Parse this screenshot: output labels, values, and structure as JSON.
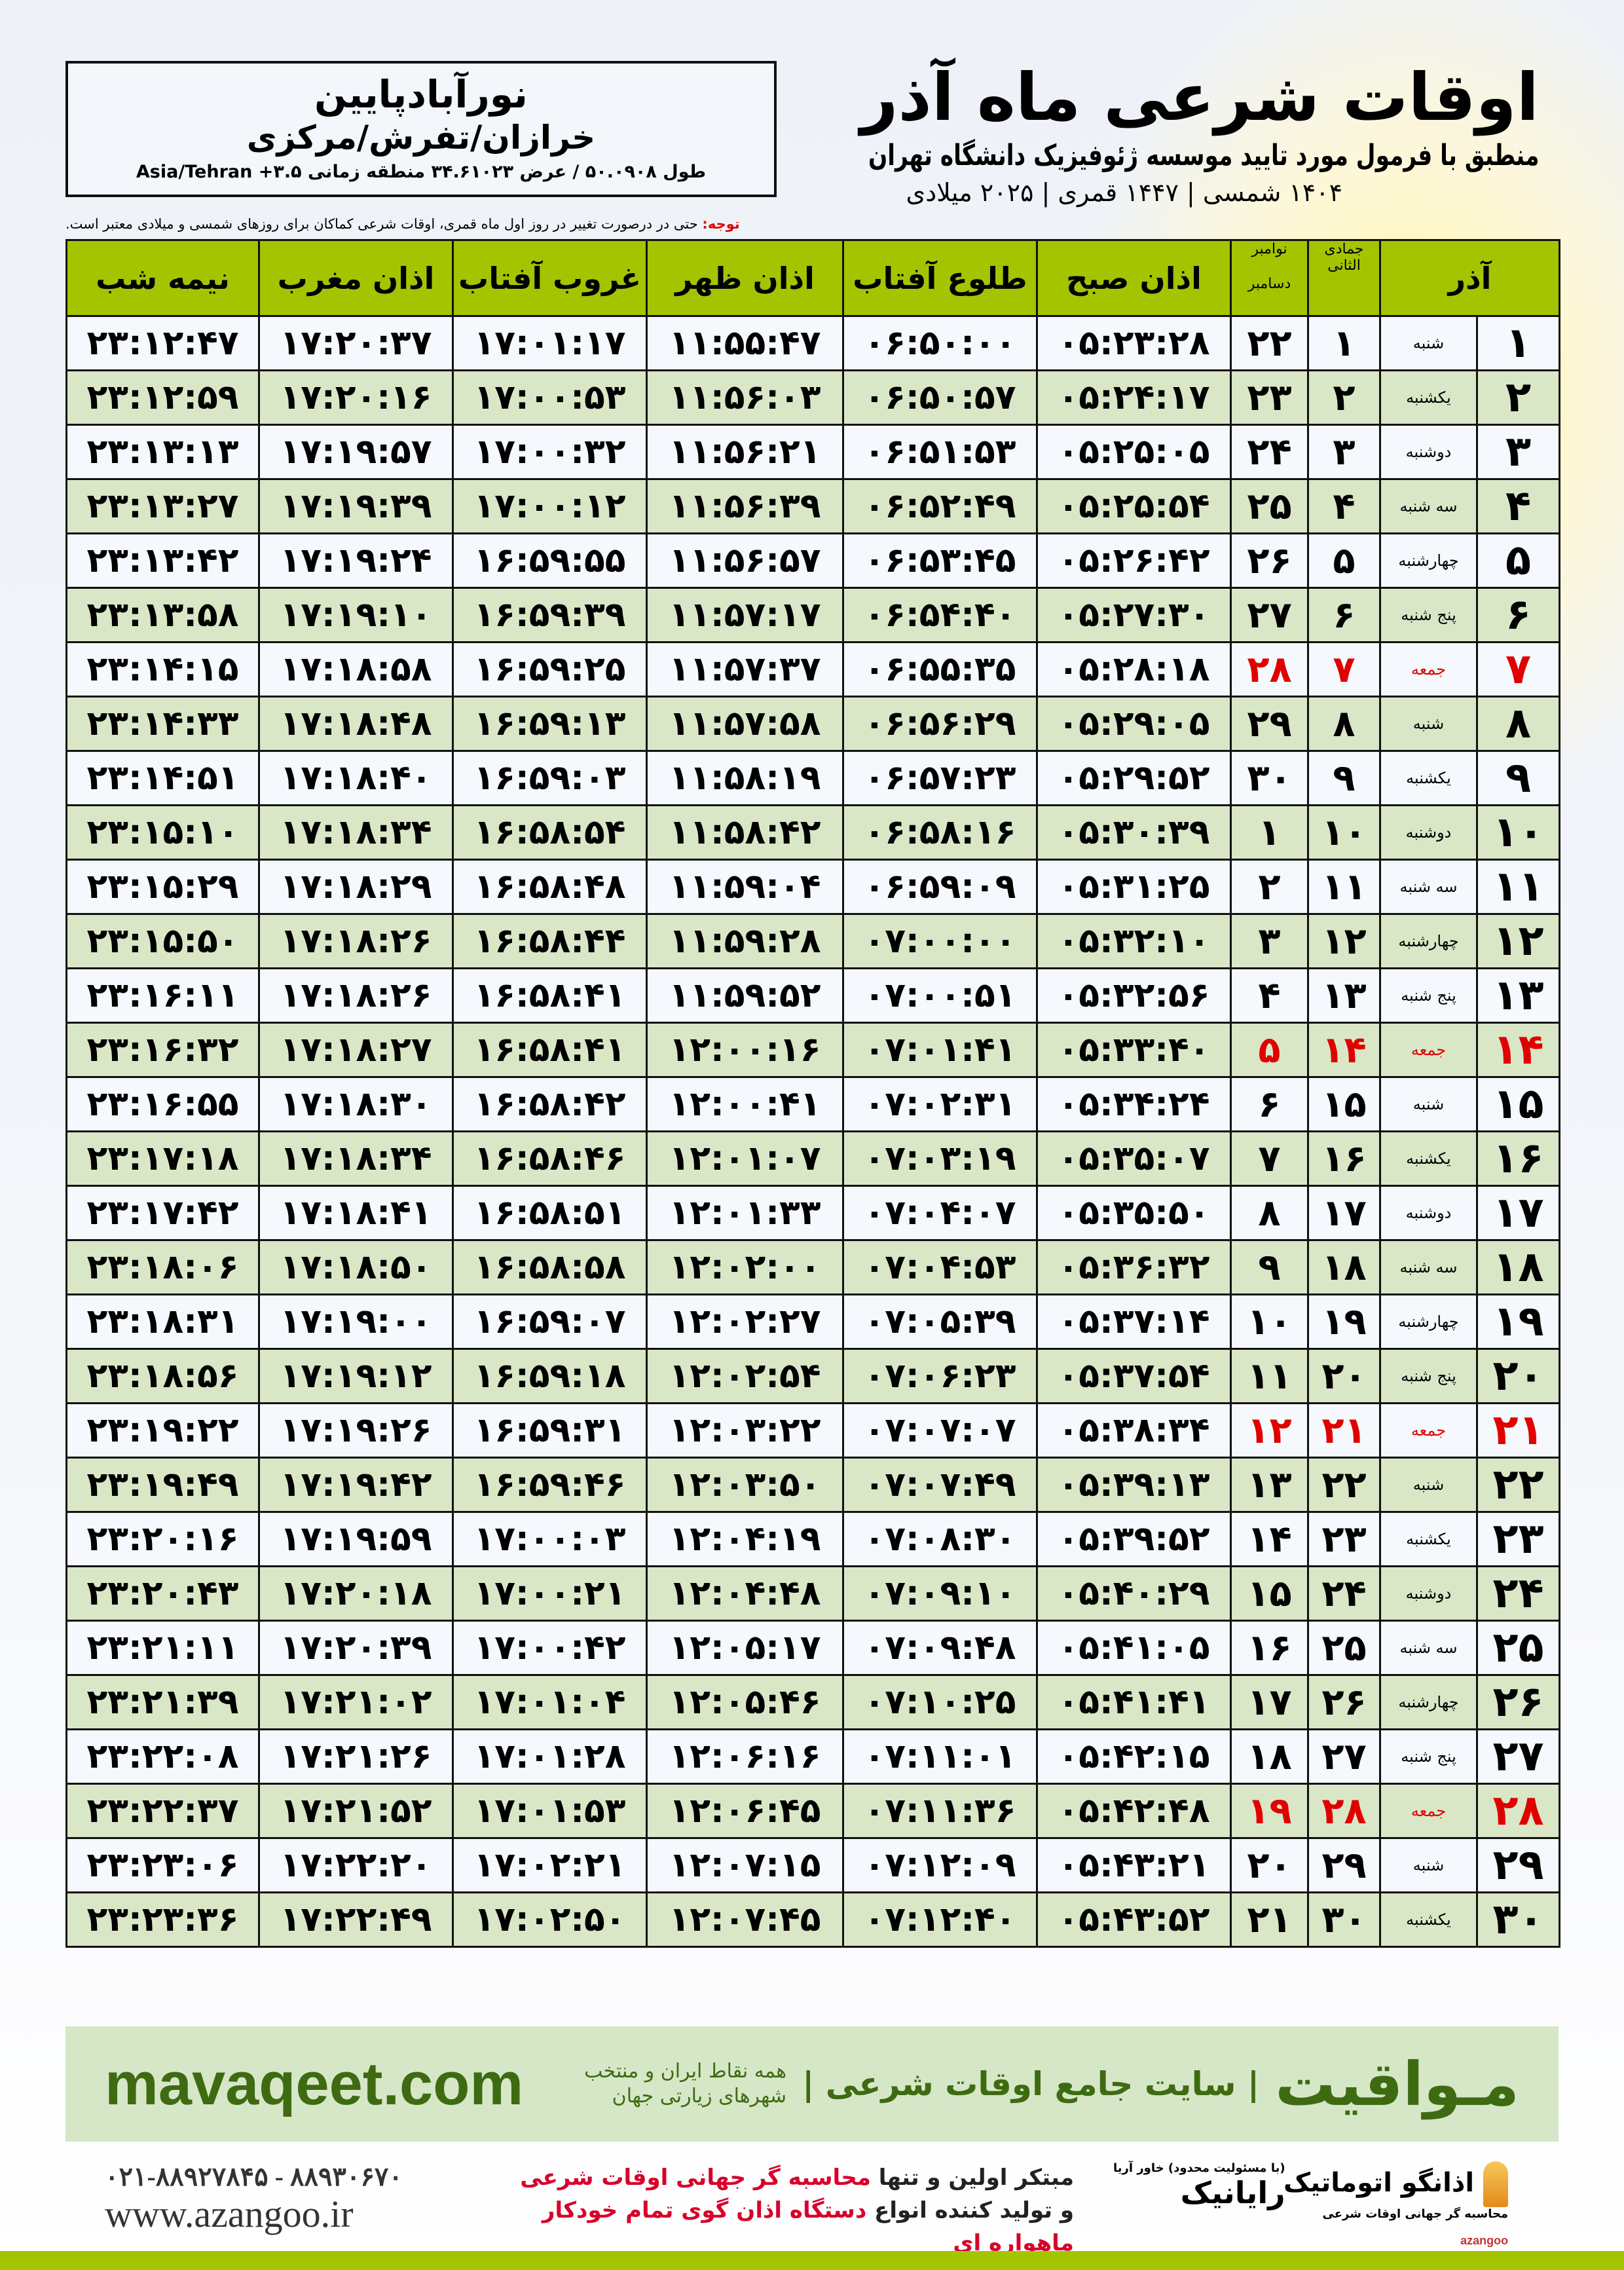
{
  "location": {
    "name": "نورآبادپایین",
    "region": "خرازان/تفرش/مرکزی",
    "coords": "طول ۵۰.۰۹۰۸ / عرض ۳۴.۶۱۰۲۳ منطقه زمانی ۳.۵+ Asia/Tehran"
  },
  "header": {
    "title": "اوقات شرعی ماه آذر",
    "subtitle": "منطبق با فرمول مورد تایید موسسه ژئوفیزیک دانشگاه تهران",
    "dates": "۱۴۰۴ شمسی | ۱۴۴۷ قمری | ۲۰۲۵ میلادی",
    "note_label": "توجه:",
    "note_text": " حتی در درصورت تغییر در روز اول ماه قمری، اوقات شرعی کماکان برای روزهای شمسی و میلادی معتبر است."
  },
  "table": {
    "headers": {
      "azar": "آذر",
      "lunar": "جمادی الثانی",
      "greg_top": "نوامبر",
      "greg_bottom": "دسامبر",
      "fajr": "اذان صبح",
      "sunrise": "طلوع آفتاب",
      "dhuhr": "اذان ظهر",
      "sunset": "غروب آفتاب",
      "maghrib": "اذان مغرب",
      "midnight": "نیمه شب"
    },
    "friday_color": "#e00000",
    "rows": [
      [
        "۱",
        "شنبه",
        "۱",
        "۲۲",
        "۰۵:۲۳:۲۸",
        "۰۶:۵۰:۰۰",
        "۱۱:۵۵:۴۷",
        "۱۷:۰۱:۱۷",
        "۱۷:۲۰:۳۷",
        "۲۳:۱۲:۴۷"
      ],
      [
        "۲",
        "یکشنبه",
        "۲",
        "۲۳",
        "۰۵:۲۴:۱۷",
        "۰۶:۵۰:۵۷",
        "۱۱:۵۶:۰۳",
        "۱۷:۰۰:۵۳",
        "۱۷:۲۰:۱۶",
        "۲۳:۱۲:۵۹"
      ],
      [
        "۳",
        "دوشنبه",
        "۳",
        "۲۴",
        "۰۵:۲۵:۰۵",
        "۰۶:۵۱:۵۳",
        "۱۱:۵۶:۲۱",
        "۱۷:۰۰:۳۲",
        "۱۷:۱۹:۵۷",
        "۲۳:۱۳:۱۳"
      ],
      [
        "۴",
        "سه شنبه",
        "۴",
        "۲۵",
        "۰۵:۲۵:۵۴",
        "۰۶:۵۲:۴۹",
        "۱۱:۵۶:۳۹",
        "۱۷:۰۰:۱۲",
        "۱۷:۱۹:۳۹",
        "۲۳:۱۳:۲۷"
      ],
      [
        "۵",
        "چهارشنبه",
        "۵",
        "۲۶",
        "۰۵:۲۶:۴۲",
        "۰۶:۵۳:۴۵",
        "۱۱:۵۶:۵۷",
        "۱۶:۵۹:۵۵",
        "۱۷:۱۹:۲۴",
        "۲۳:۱۳:۴۲"
      ],
      [
        "۶",
        "پنج شنبه",
        "۶",
        "۲۷",
        "۰۵:۲۷:۳۰",
        "۰۶:۵۴:۴۰",
        "۱۱:۵۷:۱۷",
        "۱۶:۵۹:۳۹",
        "۱۷:۱۹:۱۰",
        "۲۳:۱۳:۵۸"
      ],
      [
        "۷",
        "جمعه",
        "۷",
        "۲۸",
        "۰۵:۲۸:۱۸",
        "۰۶:۵۵:۳۵",
        "۱۱:۵۷:۳۷",
        "۱۶:۵۹:۲۵",
        "۱۷:۱۸:۵۸",
        "۲۳:۱۴:۱۵"
      ],
      [
        "۸",
        "شنبه",
        "۸",
        "۲۹",
        "۰۵:۲۹:۰۵",
        "۰۶:۵۶:۲۹",
        "۱۱:۵۷:۵۸",
        "۱۶:۵۹:۱۳",
        "۱۷:۱۸:۴۸",
        "۲۳:۱۴:۳۳"
      ],
      [
        "۹",
        "یکشنبه",
        "۹",
        "۳۰",
        "۰۵:۲۹:۵۲",
        "۰۶:۵۷:۲۳",
        "۱۱:۵۸:۱۹",
        "۱۶:۵۹:۰۳",
        "۱۷:۱۸:۴۰",
        "۲۳:۱۴:۵۱"
      ],
      [
        "۱۰",
        "دوشنبه",
        "۱۰",
        "۱",
        "۰۵:۳۰:۳۹",
        "۰۶:۵۸:۱۶",
        "۱۱:۵۸:۴۲",
        "۱۶:۵۸:۵۴",
        "۱۷:۱۸:۳۴",
        "۲۳:۱۵:۱۰"
      ],
      [
        "۱۱",
        "سه شنبه",
        "۱۱",
        "۲",
        "۰۵:۳۱:۲۵",
        "۰۶:۵۹:۰۹",
        "۱۱:۵۹:۰۴",
        "۱۶:۵۸:۴۸",
        "۱۷:۱۸:۲۹",
        "۲۳:۱۵:۲۹"
      ],
      [
        "۱۲",
        "چهارشنبه",
        "۱۲",
        "۳",
        "۰۵:۳۲:۱۰",
        "۰۷:۰۰:۰۰",
        "۱۱:۵۹:۲۸",
        "۱۶:۵۸:۴۴",
        "۱۷:۱۸:۲۶",
        "۲۳:۱۵:۵۰"
      ],
      [
        "۱۳",
        "پنج شنبه",
        "۱۳",
        "۴",
        "۰۵:۳۲:۵۶",
        "۰۷:۰۰:۵۱",
        "۱۱:۵۹:۵۲",
        "۱۶:۵۸:۴۱",
        "۱۷:۱۸:۲۶",
        "۲۳:۱۶:۱۱"
      ],
      [
        "۱۴",
        "جمعه",
        "۱۴",
        "۵",
        "۰۵:۳۳:۴۰",
        "۰۷:۰۱:۴۱",
        "۱۲:۰۰:۱۶",
        "۱۶:۵۸:۴۱",
        "۱۷:۱۸:۲۷",
        "۲۳:۱۶:۳۲"
      ],
      [
        "۱۵",
        "شنبه",
        "۱۵",
        "۶",
        "۰۵:۳۴:۲۴",
        "۰۷:۰۲:۳۱",
        "۱۲:۰۰:۴۱",
        "۱۶:۵۸:۴۲",
        "۱۷:۱۸:۳۰",
        "۲۳:۱۶:۵۵"
      ],
      [
        "۱۶",
        "یکشنبه",
        "۱۶",
        "۷",
        "۰۵:۳۵:۰۷",
        "۰۷:۰۳:۱۹",
        "۱۲:۰۱:۰۷",
        "۱۶:۵۸:۴۶",
        "۱۷:۱۸:۳۴",
        "۲۳:۱۷:۱۸"
      ],
      [
        "۱۷",
        "دوشنبه",
        "۱۷",
        "۸",
        "۰۵:۳۵:۵۰",
        "۰۷:۰۴:۰۷",
        "۱۲:۰۱:۳۳",
        "۱۶:۵۸:۵۱",
        "۱۷:۱۸:۴۱",
        "۲۳:۱۷:۴۲"
      ],
      [
        "۱۸",
        "سه شنبه",
        "۱۸",
        "۹",
        "۰۵:۳۶:۳۲",
        "۰۷:۰۴:۵۳",
        "۱۲:۰۲:۰۰",
        "۱۶:۵۸:۵۸",
        "۱۷:۱۸:۵۰",
        "۲۳:۱۸:۰۶"
      ],
      [
        "۱۹",
        "چهارشنبه",
        "۱۹",
        "۱۰",
        "۰۵:۳۷:۱۴",
        "۰۷:۰۵:۳۹",
        "۱۲:۰۲:۲۷",
        "۱۶:۵۹:۰۷",
        "۱۷:۱۹:۰۰",
        "۲۳:۱۸:۳۱"
      ],
      [
        "۲۰",
        "پنج شنبه",
        "۲۰",
        "۱۱",
        "۰۵:۳۷:۵۴",
        "۰۷:۰۶:۲۳",
        "۱۲:۰۲:۵۴",
        "۱۶:۵۹:۱۸",
        "۱۷:۱۹:۱۲",
        "۲۳:۱۸:۵۶"
      ],
      [
        "۲۱",
        "جمعه",
        "۲۱",
        "۱۲",
        "۰۵:۳۸:۳۴",
        "۰۷:۰۷:۰۷",
        "۱۲:۰۳:۲۲",
        "۱۶:۵۹:۳۱",
        "۱۷:۱۹:۲۶",
        "۲۳:۱۹:۲۲"
      ],
      [
        "۲۲",
        "شنبه",
        "۲۲",
        "۱۳",
        "۰۵:۳۹:۱۳",
        "۰۷:۰۷:۴۹",
        "۱۲:۰۳:۵۰",
        "۱۶:۵۹:۴۶",
        "۱۷:۱۹:۴۲",
        "۲۳:۱۹:۴۹"
      ],
      [
        "۲۳",
        "یکشنبه",
        "۲۳",
        "۱۴",
        "۰۵:۳۹:۵۲",
        "۰۷:۰۸:۳۰",
        "۱۲:۰۴:۱۹",
        "۱۷:۰۰:۰۳",
        "۱۷:۱۹:۵۹",
        "۲۳:۲۰:۱۶"
      ],
      [
        "۲۴",
        "دوشنبه",
        "۲۴",
        "۱۵",
        "۰۵:۴۰:۲۹",
        "۰۷:۰۹:۱۰",
        "۱۲:۰۴:۴۸",
        "۱۷:۰۰:۲۱",
        "۱۷:۲۰:۱۸",
        "۲۳:۲۰:۴۳"
      ],
      [
        "۲۵",
        "سه شنبه",
        "۲۵",
        "۱۶",
        "۰۵:۴۱:۰۵",
        "۰۷:۰۹:۴۸",
        "۱۲:۰۵:۱۷",
        "۱۷:۰۰:۴۲",
        "۱۷:۲۰:۳۹",
        "۲۳:۲۱:۱۱"
      ],
      [
        "۲۶",
        "چهارشنبه",
        "۲۶",
        "۱۷",
        "۰۵:۴۱:۴۱",
        "۰۷:۱۰:۲۵",
        "۱۲:۰۵:۴۶",
        "۱۷:۰۱:۰۴",
        "۱۷:۲۱:۰۲",
        "۲۳:۲۱:۳۹"
      ],
      [
        "۲۷",
        "پنج شنبه",
        "۲۷",
        "۱۸",
        "۰۵:۴۲:۱۵",
        "۰۷:۱۱:۰۱",
        "۱۲:۰۶:۱۶",
        "۱۷:۰۱:۲۸",
        "۱۷:۲۱:۲۶",
        "۲۳:۲۲:۰۸"
      ],
      [
        "۲۸",
        "جمعه",
        "۲۸",
        "۱۹",
        "۰۵:۴۲:۴۸",
        "۰۷:۱۱:۳۶",
        "۱۲:۰۶:۴۵",
        "۱۷:۰۱:۵۳",
        "۱۷:۲۱:۵۲",
        "۲۳:۲۲:۳۷"
      ],
      [
        "۲۹",
        "شنبه",
        "۲۹",
        "۲۰",
        "۰۵:۴۳:۲۱",
        "۰۷:۱۲:۰۹",
        "۱۲:۰۷:۱۵",
        "۱۷:۰۲:۲۱",
        "۱۷:۲۲:۲۰",
        "۲۳:۲۳:۰۶"
      ],
      [
        "۳۰",
        "یکشنبه",
        "۳۰",
        "۲۱",
        "۰۵:۴۳:۵۲",
        "۰۷:۱۲:۴۰",
        "۱۲:۰۷:۴۵",
        "۱۷:۰۲:۵۰",
        "۱۷:۲۲:۴۹",
        "۲۳:۲۳:۳۶"
      ]
    ]
  },
  "banner": {
    "brand": "مـواقیت",
    "tagline": "| سایت جامع اوقات شرعی |",
    "tagline_sub": "همه نقاط ایران و منتخب شهرهای زیارتی جهان",
    "site": "mavaqeet.com"
  },
  "footer": {
    "phone": "۰۲۱-۸۸۹۲۷۸۴۵ - ۸۸۹۳۰۶۷۰",
    "web": "www.azangoo.ir",
    "promo_line1_a": "مبتکر اولین و تنها ",
    "promo_line1_b": "محاسبه گر جهانی اوقات شرعی",
    "promo_line2_a": "و تولید کننده انواع ",
    "promo_line2_b": "دستگاه اذان گوی تمام خودکار ماهواره ای",
    "logo_rayanik": "رایانیک",
    "logo_rayanik_sub": "(با مسئولیت محدود) خاور آریا",
    "logo_azangoo": "اذانگو اتوماتیک",
    "logo_azangoo_sub": "محاسبه گر جهانی اوقات شرعی",
    "logo_azangoo_en": "azangoo"
  }
}
